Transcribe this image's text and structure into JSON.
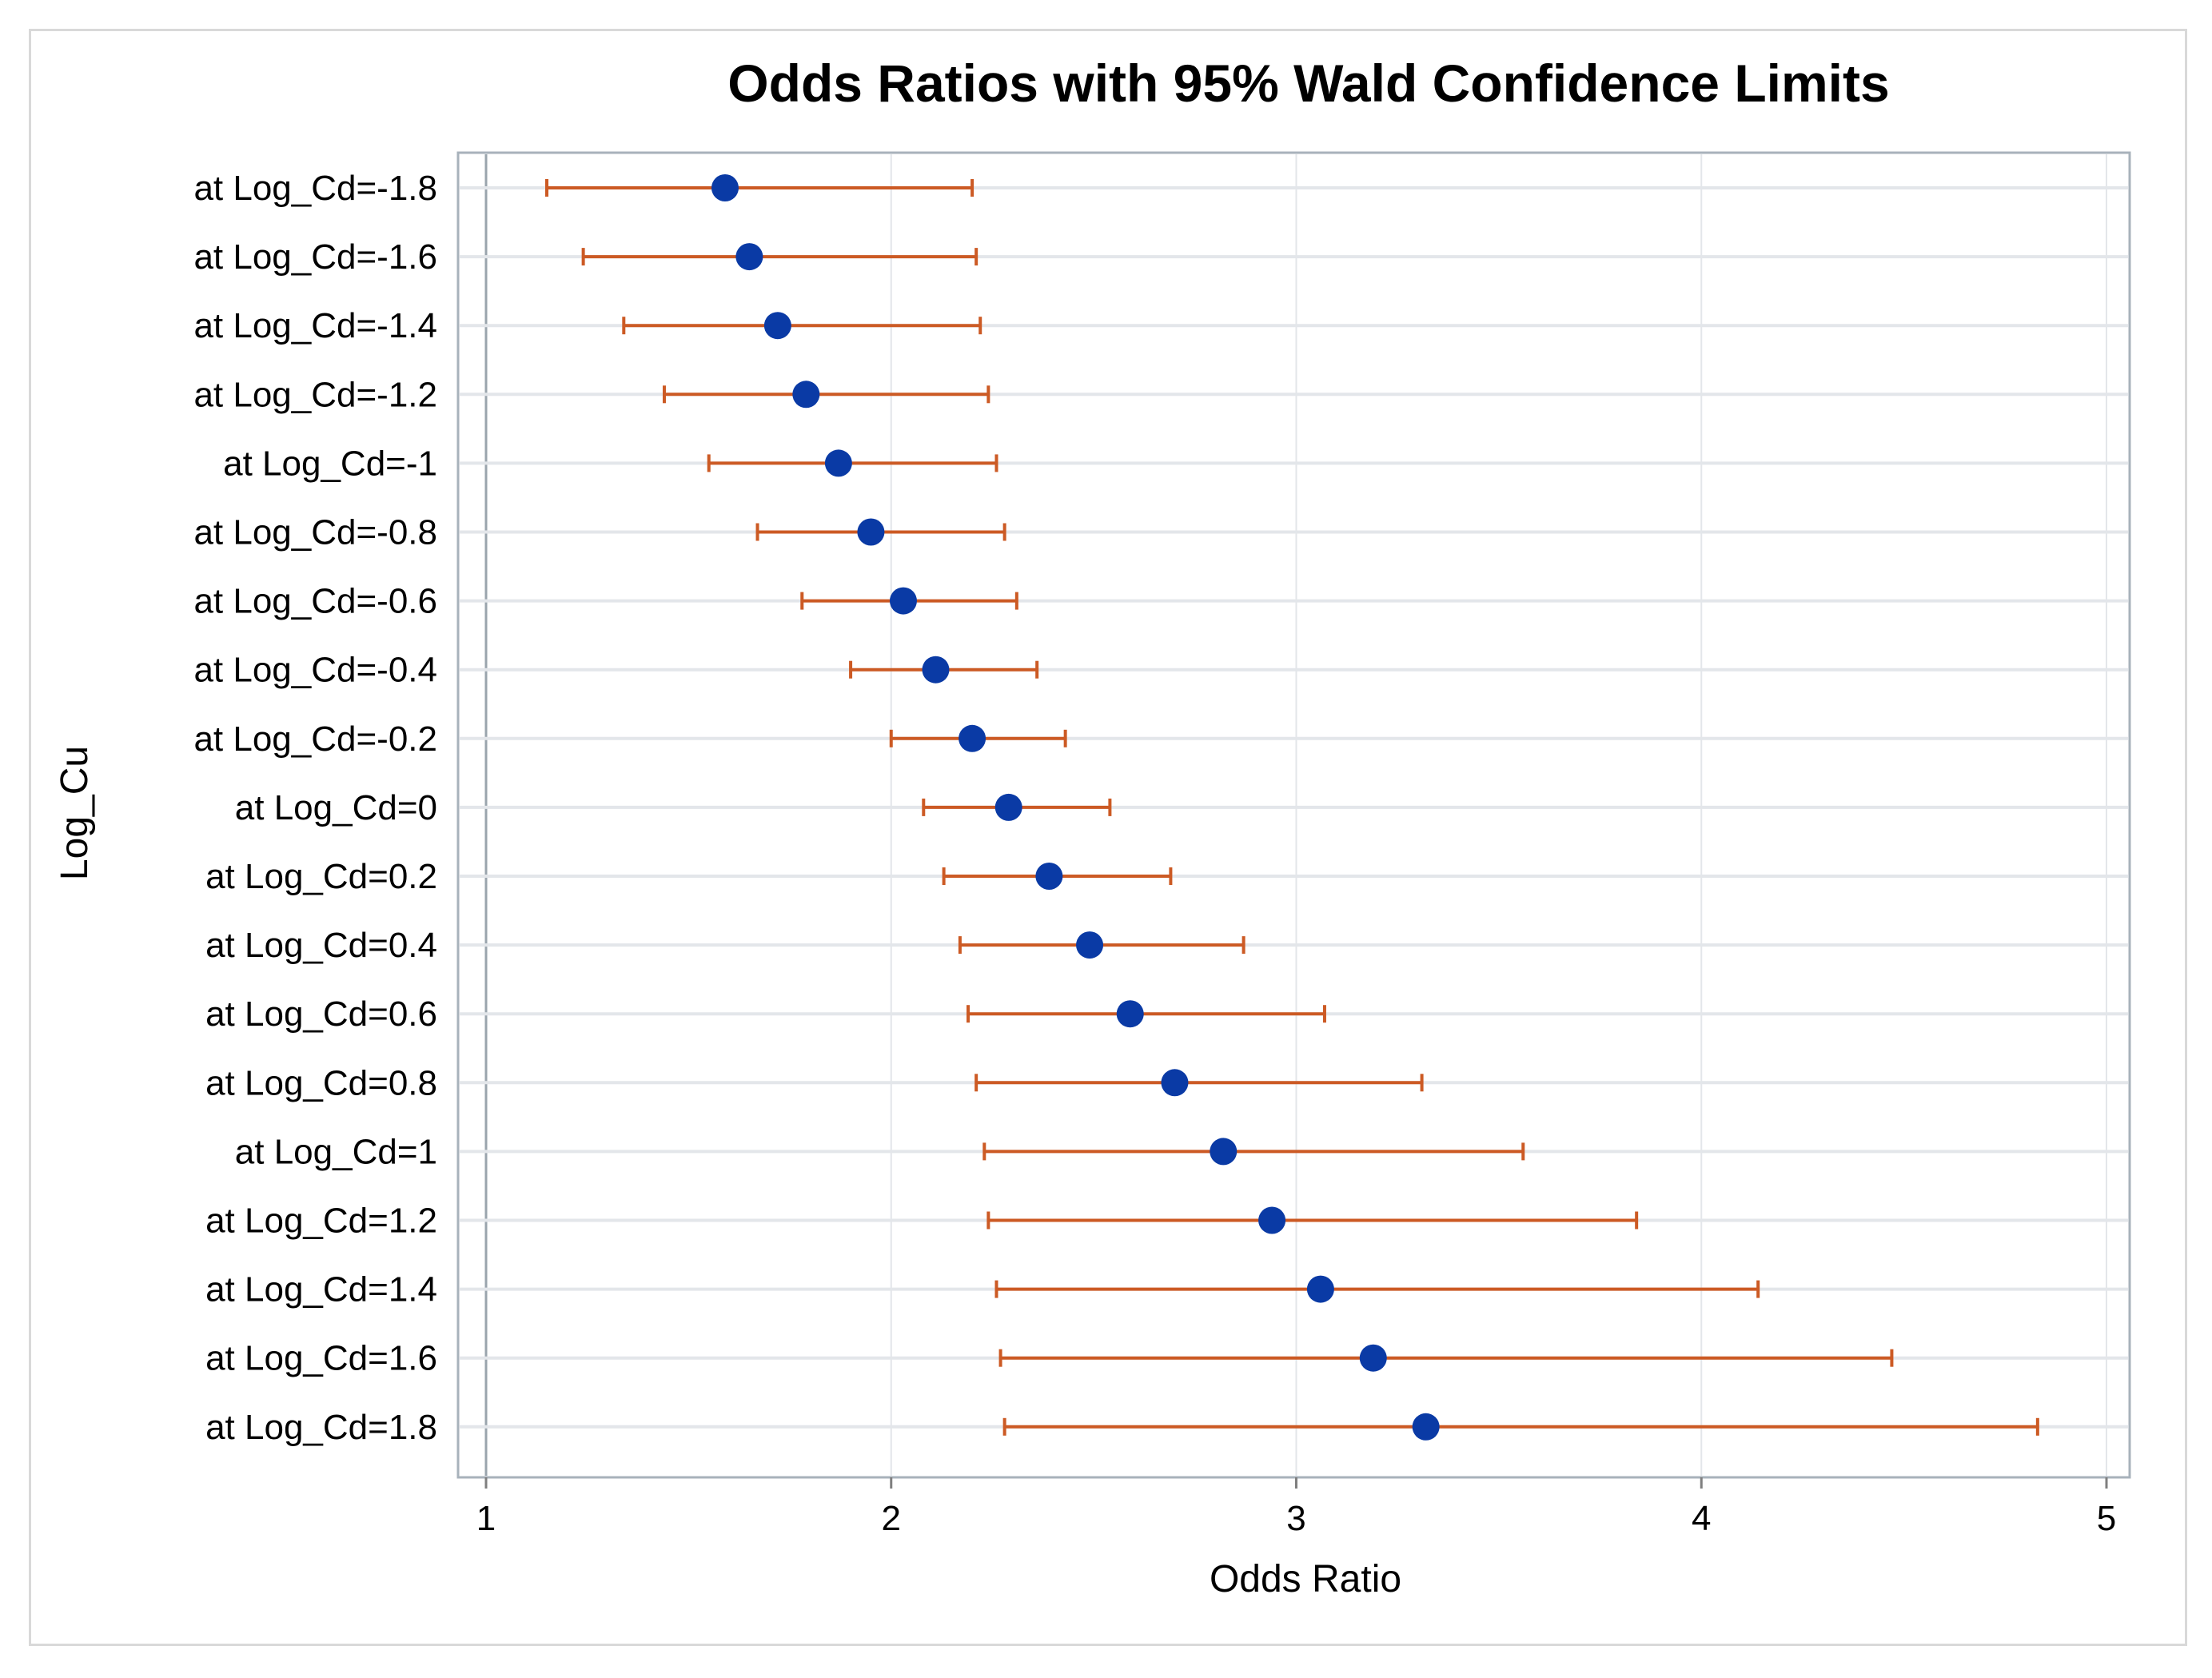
{
  "chart_data": {
    "type": "scatter",
    "subtype": "forest-plot",
    "title": "Odds Ratios with 95% Wald Confidence Limits",
    "xlabel": "Odds Ratio",
    "ylabel": "Log_Cu",
    "xlim": [
      1,
      5
    ],
    "xticks": [
      "1",
      "2",
      "3",
      "4",
      "5"
    ],
    "grid": true,
    "legend": "none",
    "colors": {
      "point": "#0a3aa5",
      "interval": "#cc5a24",
      "grid": "#e3e6ea",
      "plot_border": "#a8b2bb",
      "frame_border": "#d9d9d9"
    },
    "categories": [
      "at Log_Cd=-1.8",
      "at Log_Cd=-1.6",
      "at Log_Cd=-1.4",
      "at Log_Cd=-1.2",
      "at Log_Cd=-1",
      "at Log_Cd=-0.8",
      "at Log_Cd=-0.6",
      "at Log_Cd=-0.4",
      "at Log_Cd=-0.2",
      "at Log_Cd=0",
      "at Log_Cd=0.2",
      "at Log_Cd=0.4",
      "at Log_Cd=0.6",
      "at Log_Cd=0.8",
      "at Log_Cd=1",
      "at Log_Cd=1.2",
      "at Log_Cd=1.4",
      "at Log_Cd=1.6",
      "at Log_Cd=1.8"
    ],
    "estimates": [
      1.59,
      1.65,
      1.72,
      1.79,
      1.87,
      1.95,
      2.03,
      2.11,
      2.2,
      2.29,
      2.39,
      2.49,
      2.59,
      2.7,
      2.82,
      2.94,
      3.06,
      3.19,
      3.32
    ],
    "lower": [
      1.15,
      1.24,
      1.34,
      1.44,
      1.55,
      1.67,
      1.78,
      1.9,
      2.0,
      2.08,
      2.13,
      2.17,
      2.19,
      2.21,
      2.23,
      2.24,
      2.26,
      2.27,
      2.28
    ],
    "upper": [
      2.2,
      2.21,
      2.22,
      2.24,
      2.26,
      2.28,
      2.31,
      2.36,
      2.43,
      2.54,
      2.69,
      2.87,
      3.07,
      3.31,
      3.56,
      3.84,
      4.14,
      4.47,
      4.83
    ]
  }
}
